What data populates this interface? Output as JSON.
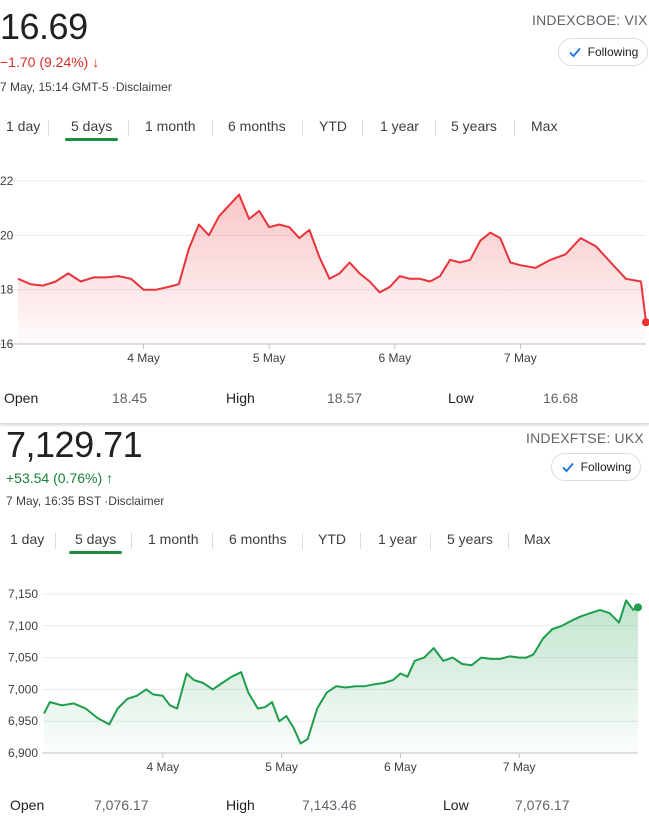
{
  "vix": {
    "price": "16.69",
    "change": "−1.70 (9.24%)",
    "direction": "down",
    "meta": "7 May, 15:14 GMT-5",
    "disclaimer": "Disclaimer",
    "ticker": "INDEXCBOE: VIX",
    "follow_label": "Following",
    "tabs": [
      "1 day",
      "5 days",
      "1 month",
      "6 months",
      "YTD",
      "1 year",
      "5 years",
      "Max"
    ],
    "active_tab": 1,
    "stats": [
      {
        "label": "Open",
        "value": "18.45"
      },
      {
        "label": "High",
        "value": "18.57"
      },
      {
        "label": "Low",
        "value": "16.68"
      }
    ]
  },
  "ukx": {
    "price": "7,129.71",
    "change": "+53.54 (0.76%)",
    "direction": "up",
    "meta": "7 May, 16:35 BST",
    "disclaimer": "Disclaimer",
    "ticker": "INDEXFTSE: UKX",
    "follow_label": "Following",
    "tabs": [
      "1 day",
      "5 days",
      "1 month",
      "6 months",
      "YTD",
      "1 year",
      "5 years",
      "Max"
    ],
    "active_tab": 1,
    "stats": [
      {
        "label": "Open",
        "value": "7,076.17"
      },
      {
        "label": "High",
        "value": "7,143.46"
      },
      {
        "label": "Low",
        "value": "7,076.17"
      }
    ]
  },
  "chart_data": [
    {
      "type": "area",
      "color": "#e8333a",
      "ylim": [
        16,
        22
      ],
      "yticks": [
        "16",
        "18",
        "20",
        "22"
      ],
      "ytick_values": [
        16,
        18,
        20,
        22
      ],
      "x_range": [
        0,
        5
      ],
      "xticks": [
        "4 May",
        "5 May",
        "6 May",
        "7 May"
      ],
      "xtick_values": [
        1,
        2,
        3,
        4
      ],
      "x": [
        0,
        0.1,
        0.2,
        0.3,
        0.4,
        0.5,
        0.6,
        0.7,
        0.8,
        0.9,
        1.0,
        1.1,
        1.2,
        1.28,
        1.36,
        1.44,
        1.52,
        1.6,
        1.68,
        1.76,
        1.84,
        1.92,
        2.0,
        2.08,
        2.16,
        2.24,
        2.32,
        2.4,
        2.48,
        2.56,
        2.64,
        2.72,
        2.8,
        2.88,
        2.96,
        3.04,
        3.12,
        3.2,
        3.28,
        3.36,
        3.44,
        3.52,
        3.6,
        3.68,
        3.76,
        3.84,
        3.92,
        4.0,
        4.12,
        4.24,
        4.36,
        4.48,
        4.6,
        4.72,
        4.84,
        4.96,
        5.0
      ],
      "y": [
        18.4,
        18.2,
        18.15,
        18.3,
        18.6,
        18.3,
        18.45,
        18.45,
        18.5,
        18.4,
        18.0,
        18.0,
        18.1,
        18.2,
        19.5,
        20.4,
        20.0,
        20.7,
        21.1,
        21.5,
        20.6,
        20.9,
        20.3,
        20.4,
        20.3,
        19.9,
        20.2,
        19.2,
        18.4,
        18.6,
        19.0,
        18.6,
        18.3,
        17.9,
        18.1,
        18.5,
        18.4,
        18.4,
        18.3,
        18.5,
        19.1,
        19.0,
        19.1,
        19.8,
        20.1,
        19.9,
        19.0,
        18.9,
        18.8,
        19.1,
        19.3,
        19.9,
        19.6,
        19.0,
        18.4,
        18.3,
        16.8
      ]
    },
    {
      "type": "area",
      "color": "#1e9d4c",
      "ylim": [
        6900,
        7150
      ],
      "yticks": [
        "6,900",
        "6,950",
        "7,000",
        "7,050",
        "7,100",
        "7,150"
      ],
      "ytick_values": [
        6900,
        6950,
        7000,
        7050,
        7100,
        7150
      ],
      "x_range": [
        0,
        5
      ],
      "xticks": [
        "4 May",
        "5 May",
        "6 May",
        "7 May"
      ],
      "xtick_values": [
        1,
        2,
        3,
        4
      ],
      "x": [
        0,
        0.05,
        0.15,
        0.25,
        0.35,
        0.45,
        0.55,
        0.62,
        0.7,
        0.78,
        0.86,
        0.92,
        1.0,
        1.06,
        1.12,
        1.2,
        1.26,
        1.34,
        1.42,
        1.5,
        1.58,
        1.66,
        1.72,
        1.8,
        1.86,
        1.92,
        1.98,
        2.04,
        2.1,
        2.16,
        2.22,
        2.3,
        2.38,
        2.46,
        2.54,
        2.62,
        2.7,
        2.78,
        2.86,
        2.94,
        3.0,
        3.06,
        3.12,
        3.2,
        3.28,
        3.36,
        3.44,
        3.52,
        3.6,
        3.68,
        3.76,
        3.84,
        3.92,
        4.0,
        4.06,
        4.12,
        4.2,
        4.28,
        4.36,
        4.44,
        4.52,
        4.6,
        4.68,
        4.76,
        4.84,
        4.9,
        4.96,
        5.0
      ],
      "y": [
        6962,
        6980,
        6975,
        6978,
        6970,
        6955,
        6945,
        6970,
        6985,
        6990,
        7000,
        6992,
        6990,
        6975,
        6970,
        7025,
        7015,
        7010,
        7000,
        7010,
        7020,
        7027,
        6995,
        6970,
        6972,
        6980,
        6950,
        6958,
        6940,
        6915,
        6922,
        6970,
        6995,
        7005,
        7003,
        7005,
        7005,
        7008,
        7010,
        7015,
        7025,
        7020,
        7045,
        7050,
        7065,
        7045,
        7050,
        7040,
        7038,
        7050,
        7048,
        7048,
        7052,
        7050,
        7050,
        7055,
        7080,
        7095,
        7100,
        7108,
        7115,
        7120,
        7125,
        7120,
        7105,
        7140,
        7125,
        7129
      ]
    }
  ]
}
